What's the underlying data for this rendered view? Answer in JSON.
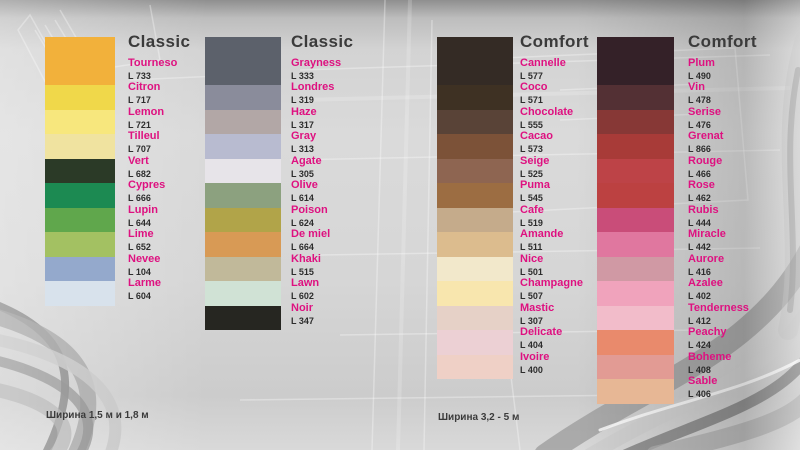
{
  "captions": {
    "classic": "Ширина 1,5 м и 1,8 м",
    "comfort": "Ширина 3,2 - 5 м"
  },
  "colors": {
    "accent_pink": "#de1180",
    "header_text": "#3b3b3b",
    "code_text": "#2d2d2d"
  },
  "palettes": [
    {
      "header": "Classic",
      "items": [
        {
          "name": "Tourneso",
          "code": "L 733",
          "hex": "#F2B13B"
        },
        {
          "name": "Citron",
          "code": "L 717",
          "hex": "#F0D84A"
        },
        {
          "name": "Lemon",
          "code": "L 721",
          "hex": "#F7E77D"
        },
        {
          "name": "Tilleul",
          "code": "L 707",
          "hex": "#F0E3A0"
        },
        {
          "name": "Vert",
          "code": "L 682",
          "hex": "#2B3A27"
        },
        {
          "name": "Cypres",
          "code": "L 666",
          "hex": "#1C8A52"
        },
        {
          "name": "Lupin",
          "code": "L 644",
          "hex": "#60A74C"
        },
        {
          "name": "Lime",
          "code": "L 652",
          "hex": "#A3C162"
        },
        {
          "name": "Nevee",
          "code": "L 104",
          "hex": "#94A9CC"
        },
        {
          "name": "Larme",
          "code": "L 604",
          "hex": "#D8E2EC"
        }
      ]
    },
    {
      "header": "Classic",
      "items": [
        {
          "name": "Grayness",
          "code": "L 333",
          "hex": "#5C616B"
        },
        {
          "name": "Londres",
          "code": "L 319",
          "hex": "#8A8C9B"
        },
        {
          "name": "Haze",
          "code": "L 317",
          "hex": "#B2A7A6"
        },
        {
          "name": "Gray",
          "code": "L 313",
          "hex": "#B8BBD0"
        },
        {
          "name": "Agate",
          "code": "L 305",
          "hex": "#E7E4E9"
        },
        {
          "name": "Olive",
          "code": "L 614",
          "hex": "#8CA17F"
        },
        {
          "name": "Poison",
          "code": "L 624",
          "hex": "#B1A449"
        },
        {
          "name": "De miel",
          "code": "L 664",
          "hex": "#D89A55"
        },
        {
          "name": "Khaki",
          "code": "L 515",
          "hex": "#C1B99A"
        },
        {
          "name": "Lawn",
          "code": "L 602",
          "hex": "#D0E2D5"
        },
        {
          "name": "Noir",
          "code": "L 347",
          "hex": "#262621"
        }
      ]
    },
    {
      "header": "Comfort",
      "items": [
        {
          "name": "Cannelle",
          "code": "L 577",
          "hex": "#342B25"
        },
        {
          "name": "Coco",
          "code": "L 571",
          "hex": "#3E3123"
        },
        {
          "name": "Chocolate",
          "code": "L 555",
          "hex": "#594337"
        },
        {
          "name": "Cacao",
          "code": "L 573",
          "hex": "#7C5238"
        },
        {
          "name": "Seige",
          "code": "L 525",
          "hex": "#8E6551"
        },
        {
          "name": "Puma",
          "code": "L 545",
          "hex": "#9C6D42"
        },
        {
          "name": "Cafe",
          "code": "L 519",
          "hex": "#C5AB8B"
        },
        {
          "name": "Amande",
          "code": "L 511",
          "hex": "#DCBC8E"
        },
        {
          "name": "Nice",
          "code": "L 501",
          "hex": "#F2E8CB"
        },
        {
          "name": "Champagne",
          "code": "L 507",
          "hex": "#F8E6AE"
        },
        {
          "name": "Mastic",
          "code": "L 307",
          "hex": "#E6D1C7"
        },
        {
          "name": "Delicate",
          "code": "L 404",
          "hex": "#ECD0D4"
        },
        {
          "name": "Ivoire",
          "code": "L 400",
          "hex": "#EFD0C6"
        }
      ]
    },
    {
      "header": "Comfort",
      "items": [
        {
          "name": "Plum",
          "code": "L 490",
          "hex": "#342128"
        },
        {
          "name": "Vin",
          "code": "L 478",
          "hex": "#533034"
        },
        {
          "name": "Serise",
          "code": "L 476",
          "hex": "#873836"
        },
        {
          "name": "Grenat",
          "code": "L 866",
          "hex": "#A83B38"
        },
        {
          "name": "Rouge",
          "code": "L 466",
          "hex": "#BD4347"
        },
        {
          "name": "Rose",
          "code": "L 462",
          "hex": "#BC4141"
        },
        {
          "name": "Rubis",
          "code": "L 444",
          "hex": "#C94D79"
        },
        {
          "name": "Miracle",
          "code": "L 442",
          "hex": "#E0779F"
        },
        {
          "name": "Aurore",
          "code": "L 416",
          "hex": "#D099A4"
        },
        {
          "name": "Azalee",
          "code": "L 402",
          "hex": "#F0A3BC"
        },
        {
          "name": "Tenderness",
          "code": "L 412",
          "hex": "#F2BCCA"
        },
        {
          "name": "Peachy",
          "code": "L 424",
          "hex": "#E98A6C"
        },
        {
          "name": "Boheme",
          "code": "L 408",
          "hex": "#E29B94"
        },
        {
          "name": "Sable",
          "code": "L 406",
          "hex": "#E7B795"
        }
      ]
    }
  ]
}
